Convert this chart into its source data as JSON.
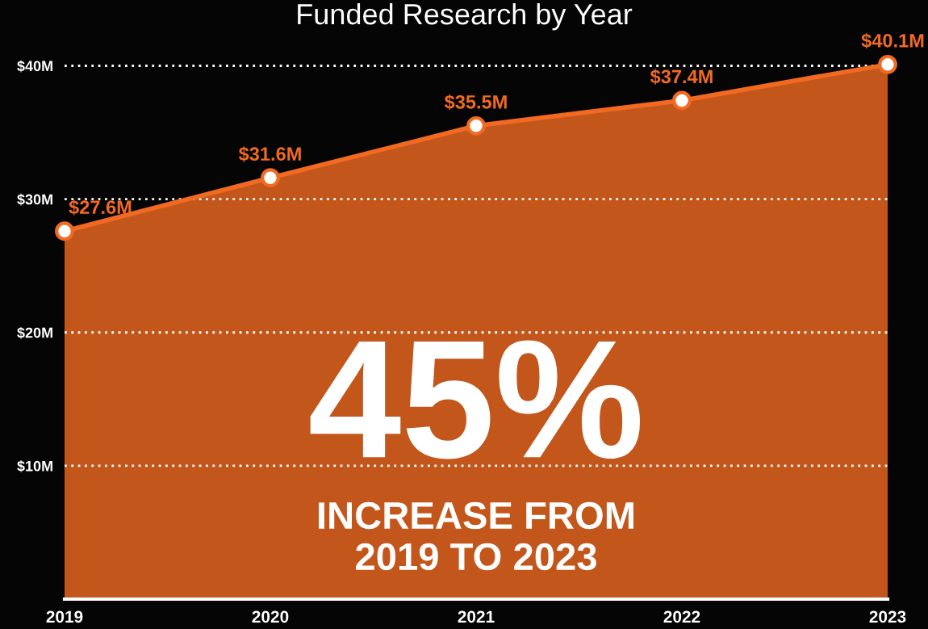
{
  "chart_data": {
    "type": "area",
    "title": "Funded Research by Year",
    "categories": [
      "2019",
      "2020",
      "2021",
      "2022",
      "2023"
    ],
    "series": [
      {
        "color": "#f26a21",
        "values": [
          27.6,
          31.6,
          35.5,
          37.4,
          40.1
        ]
      }
    ],
    "value_labels": [
      "$27.6M",
      "$31.6M",
      "$35.5M",
      "$37.4M",
      "$40.1M"
    ],
    "ylim": [
      0,
      40.1
    ],
    "yticks": [
      {
        "value": 10,
        "label": "$10M"
      },
      {
        "value": 20,
        "label": "$20M"
      },
      {
        "value": 30,
        "label": "$30M"
      },
      {
        "value": 40,
        "label": "$40M"
      }
    ],
    "grid": "y",
    "marker": "circle",
    "annotations": [
      "45%",
      "INCREASE FROM\n2019 TO 2023"
    ]
  }
}
